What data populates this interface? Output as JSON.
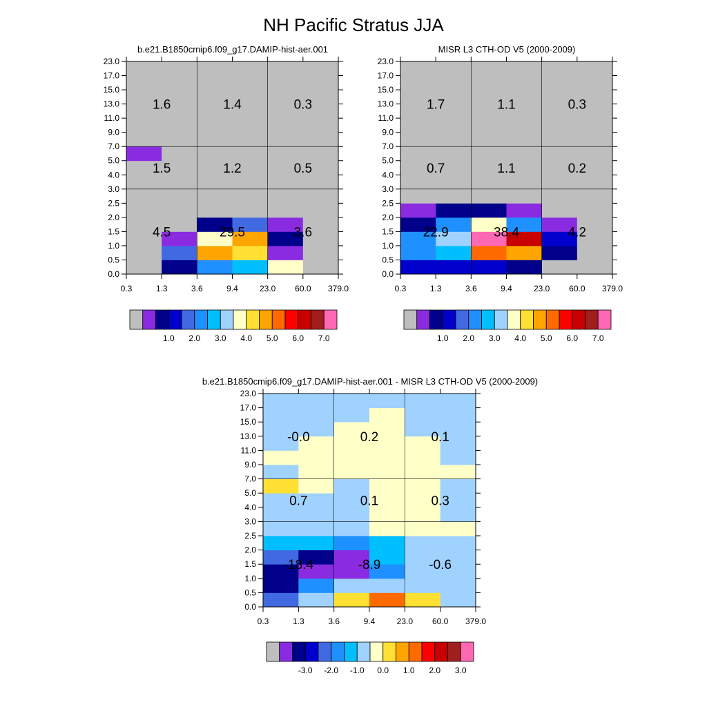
{
  "figure": {
    "title": "NH Pacific Stratus JJA"
  },
  "x_tick_labels": [
    "0.3",
    "1.3",
    "3.6",
    "9.4",
    "23.0",
    "60.0",
    "379.0"
  ],
  "y_tick_labels": [
    "0.0",
    "0.5",
    "1.0",
    "1.5",
    "2.0",
    "2.5",
    "3.0",
    "4.0",
    "5.0",
    "7.0",
    "9.0",
    "11.0",
    "13.0",
    "15.0",
    "17.0",
    "23.0"
  ],
  "colors": {
    "missing": "#bebebe",
    "palette": [
      "#8a2be2",
      "#00008b",
      "#0000cd",
      "#4169e1",
      "#1e90ff",
      "#00bfff",
      "#a0d2ff",
      "#ffffc8",
      "#ffe033",
      "#ffa500",
      "#ff6a00",
      "#ff0000",
      "#c80000",
      "#a01e1e",
      "#ff69b4"
    ]
  },
  "chart_data": [
    {
      "type": "heatmap",
      "title": "b.e21.B1850cmip6.f09_g17.DAMIP-hist-aer.001",
      "x_edges": [
        "0.3",
        "1.3",
        "3.6",
        "9.4",
        "23.0",
        "60.0",
        "379.0"
      ],
      "y_edges": [
        "0.0",
        "0.5",
        "1.0",
        "1.5",
        "2.0",
        "2.5",
        "3.0",
        "4.0",
        "5.0",
        "7.0",
        "9.0",
        "11.0",
        "13.0",
        "15.0",
        "17.0",
        "23.0"
      ],
      "color_index_grid_bottom_to_top": [
        [
          -1,
          1,
          4,
          5,
          7,
          -1
        ],
        [
          -1,
          3,
          9,
          8,
          0,
          -1
        ],
        [
          -1,
          0,
          7,
          9,
          1,
          -1
        ],
        [
          -1,
          -1,
          1,
          3,
          0,
          -1
        ],
        [
          -1,
          -1,
          -1,
          -1,
          -1,
          -1
        ],
        [
          -1,
          -1,
          -1,
          -1,
          -1,
          -1
        ],
        [
          -1,
          -1,
          -1,
          -1,
          -1,
          -1
        ],
        [
          -1,
          -1,
          -1,
          -1,
          -1,
          -1
        ],
        [
          0,
          -1,
          -1,
          -1,
          -1,
          -1
        ],
        [
          -1,
          -1,
          -1,
          -1,
          -1,
          -1
        ],
        [
          -1,
          -1,
          -1,
          -1,
          -1,
          -1
        ],
        [
          -1,
          -1,
          -1,
          -1,
          -1,
          -1
        ],
        [
          -1,
          -1,
          -1,
          -1,
          -1,
          -1
        ],
        [
          -1,
          -1,
          -1,
          -1,
          -1,
          -1
        ],
        [
          -1,
          -1,
          -1,
          -1,
          -1,
          -1
        ]
      ],
      "group_values": [
        {
          "label": "4.5",
          "col": 0,
          "band": "low"
        },
        {
          "label": "29.5",
          "col": 1,
          "band": "low"
        },
        {
          "label": "3.6",
          "col": 2,
          "band": "low"
        },
        {
          "label": "1.5",
          "col": 0,
          "band": "mid"
        },
        {
          "label": "1.2",
          "col": 1,
          "band": "mid"
        },
        {
          "label": "0.5",
          "col": 2,
          "band": "mid"
        },
        {
          "label": "1.6",
          "col": 0,
          "band": "high"
        },
        {
          "label": "1.4",
          "col": 1,
          "band": "high"
        },
        {
          "label": "0.3",
          "col": 2,
          "band": "high"
        }
      ],
      "colorbar": {
        "labels": [
          "1.0",
          "2.0",
          "3.0",
          "4.0",
          "5.0",
          "6.0",
          "7.0"
        ],
        "missing_box": true
      }
    },
    {
      "type": "heatmap",
      "title": "MISR L3 CTH-OD V5 (2000-2009)",
      "x_edges": [
        "0.3",
        "1.3",
        "3.6",
        "9.4",
        "23.0",
        "60.0",
        "379.0"
      ],
      "y_edges": [
        "0.0",
        "0.5",
        "1.0",
        "1.5",
        "2.0",
        "2.5",
        "3.0",
        "4.0",
        "5.0",
        "7.0",
        "9.0",
        "11.0",
        "13.0",
        "15.0",
        "17.0",
        "23.0"
      ],
      "color_index_grid_bottom_to_top": [
        [
          2,
          2,
          2,
          1,
          -1,
          -1
        ],
        [
          4,
          5,
          10,
          9,
          1,
          -1
        ],
        [
          4,
          6,
          14,
          12,
          2,
          -1
        ],
        [
          1,
          4,
          7,
          4,
          0,
          -1
        ],
        [
          0,
          1,
          1,
          0,
          -1,
          -1
        ],
        [
          -1,
          -1,
          -1,
          -1,
          -1,
          -1
        ],
        [
          -1,
          -1,
          -1,
          -1,
          -1,
          -1
        ],
        [
          -1,
          -1,
          -1,
          -1,
          -1,
          -1
        ],
        [
          -1,
          -1,
          -1,
          -1,
          -1,
          -1
        ],
        [
          -1,
          -1,
          -1,
          -1,
          -1,
          -1
        ],
        [
          -1,
          -1,
          -1,
          -1,
          -1,
          -1
        ],
        [
          -1,
          -1,
          -1,
          -1,
          -1,
          -1
        ],
        [
          -1,
          -1,
          -1,
          -1,
          -1,
          -1
        ],
        [
          -1,
          -1,
          -1,
          -1,
          -1,
          -1
        ],
        [
          -1,
          -1,
          -1,
          -1,
          -1,
          -1
        ]
      ],
      "group_values": [
        {
          "label": "22.9",
          "col": 0,
          "band": "low"
        },
        {
          "label": "38.4",
          "col": 1,
          "band": "low"
        },
        {
          "label": "4.2",
          "col": 2,
          "band": "low"
        },
        {
          "label": "0.7",
          "col": 0,
          "band": "mid"
        },
        {
          "label": "1.1",
          "col": 1,
          "band": "mid"
        },
        {
          "label": "0.2",
          "col": 2,
          "band": "mid"
        },
        {
          "label": "1.7",
          "col": 0,
          "band": "high"
        },
        {
          "label": "1.1",
          "col": 1,
          "band": "high"
        },
        {
          "label": "0.3",
          "col": 2,
          "band": "high"
        }
      ],
      "colorbar": {
        "labels": [
          "1.0",
          "2.0",
          "3.0",
          "4.0",
          "5.0",
          "6.0",
          "7.0"
        ],
        "missing_box": true
      }
    },
    {
      "type": "heatmap",
      "title": "b.e21.B1850cmip6.f09_g17.DAMIP-hist-aer.001 - MISR L3 CTH-OD V5 (2000-2009)",
      "x_edges": [
        "0.3",
        "1.3",
        "3.6",
        "9.4",
        "23.0",
        "60.0",
        "379.0"
      ],
      "y_edges": [
        "0.0",
        "0.5",
        "1.0",
        "1.5",
        "2.0",
        "2.5",
        "3.0",
        "4.0",
        "5.0",
        "7.0",
        "9.0",
        "11.0",
        "13.0",
        "15.0",
        "17.0",
        "23.0"
      ],
      "color_index_grid_bottom_to_top": [
        [
          3,
          6,
          8,
          10,
          8,
          6
        ],
        [
          1,
          4,
          6,
          6,
          6,
          6
        ],
        [
          1,
          0,
          0,
          4,
          6,
          6
        ],
        [
          3,
          1,
          0,
          5,
          6,
          6
        ],
        [
          5,
          5,
          4,
          5,
          6,
          6
        ],
        [
          6,
          6,
          6,
          7,
          7,
          7
        ],
        [
          6,
          6,
          6,
          7,
          7,
          6
        ],
        [
          6,
          6,
          6,
          7,
          7,
          6
        ],
        [
          8,
          7,
          6,
          7,
          7,
          6
        ],
        [
          6,
          7,
          7,
          7,
          7,
          7
        ],
        [
          7,
          7,
          7,
          7,
          7,
          6
        ],
        [
          6,
          7,
          7,
          7,
          7,
          6
        ],
        [
          6,
          6,
          7,
          7,
          6,
          6
        ],
        [
          6,
          6,
          6,
          7,
          6,
          6
        ],
        [
          6,
          6,
          6,
          6,
          6,
          6
        ]
      ],
      "group_values": [
        {
          "label": "-18.4",
          "col": 0,
          "band": "low"
        },
        {
          "label": "-8.9",
          "col": 1,
          "band": "low"
        },
        {
          "label": "-0.6",
          "col": 2,
          "band": "low"
        },
        {
          "label": "0.7",
          "col": 0,
          "band": "mid"
        },
        {
          "label": "0.1",
          "col": 1,
          "band": "mid"
        },
        {
          "label": "0.3",
          "col": 2,
          "band": "mid"
        },
        {
          "label": "-0.0",
          "col": 0,
          "band": "high"
        },
        {
          "label": "0.2",
          "col": 1,
          "band": "high"
        },
        {
          "label": "0.1",
          "col": 2,
          "band": "high"
        }
      ],
      "colorbar": {
        "labels": [
          "-3.0",
          "-2.0",
          "-1.0",
          "0.0",
          "1.0",
          "2.0",
          "3.0"
        ],
        "missing_box": true
      }
    }
  ]
}
